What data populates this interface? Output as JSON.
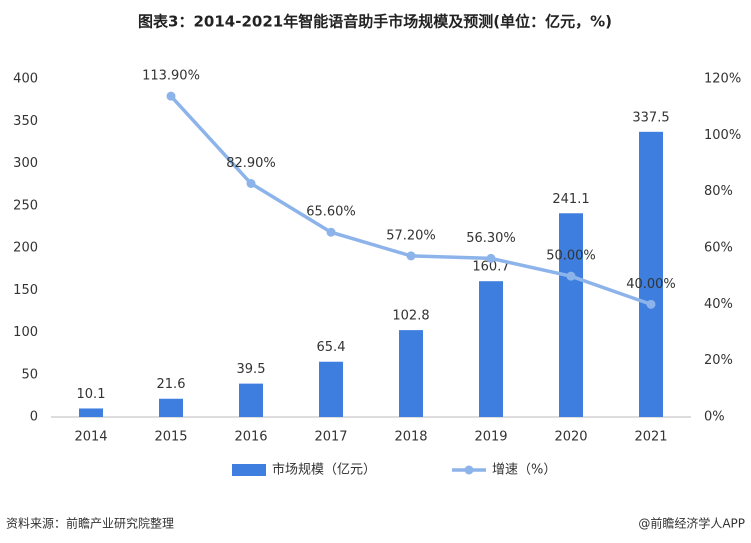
{
  "chart_data": {
    "type": "bar_line",
    "title": "图表3：2014-2021年智能语音助手市场规模及预测(单位：亿元，%)",
    "categories": [
      "2014",
      "2015",
      "2016",
      "2017",
      "2018",
      "2019",
      "2020",
      "2021"
    ],
    "series": [
      {
        "name": "市场规模（亿元）",
        "type": "bar",
        "color": "#3d7ede",
        "values": [
          10.1,
          21.6,
          39.5,
          65.4,
          102.8,
          160.7,
          241.1,
          337.5
        ]
      },
      {
        "name": "增速（%）",
        "type": "line",
        "axis": "y2",
        "color": "#8db4ea",
        "values": [
          null,
          113.9,
          82.9,
          65.6,
          57.2,
          56.3,
          50.0,
          40.0
        ],
        "value_labels": [
          null,
          "113.90%",
          "82.90%",
          "65.60%",
          "57.20%",
          "56.30%",
          "50.00%",
          "40.00%"
        ]
      }
    ],
    "ylim": [
      0,
      400
    ],
    "yticks": [
      0,
      50,
      100,
      150,
      200,
      250,
      300,
      350,
      400
    ],
    "y2lim": [
      0,
      120
    ],
    "y2ticks": [
      {
        "value": 0,
        "label": "0%"
      },
      {
        "value": 20,
        "label": "20%"
      },
      {
        "value": 40,
        "label": "40%"
      },
      {
        "value": 60,
        "label": "60%"
      },
      {
        "value": 80,
        "label": "80%"
      },
      {
        "value": 100,
        "label": "100%"
      },
      {
        "value": 120,
        "label": "120%"
      }
    ],
    "legend": "bottom",
    "source": "资料来源：前瞻产业研究院整理",
    "credit": "@前瞻经济学人APP"
  }
}
